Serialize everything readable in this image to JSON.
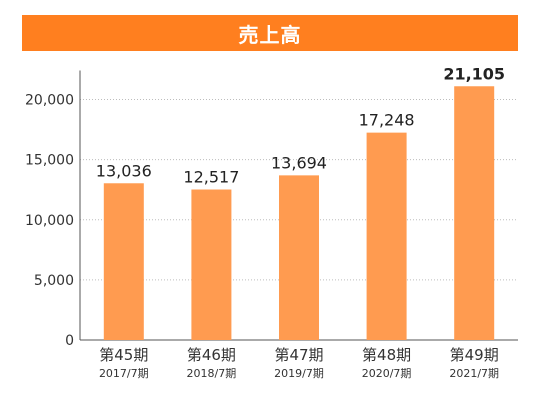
{
  "chart_data": {
    "type": "bar",
    "title": "売上高",
    "categories": [
      "第45期",
      "第46期",
      "第47期",
      "第48期",
      "第49期"
    ],
    "sub_categories": [
      "2017/7期",
      "2018/7期",
      "2019/7期",
      "2020/7期",
      "2021/7期"
    ],
    "values": [
      13036,
      12517,
      13694,
      17248,
      21105
    ],
    "value_labels": [
      "13,036",
      "12,517",
      "13,694",
      "17,248",
      "21,105"
    ],
    "highlight_index": 4,
    "yticks": [
      0,
      5000,
      10000,
      15000,
      20000
    ],
    "ytick_labels": [
      "0",
      "5,000",
      "10,000",
      "15,000",
      "20,000"
    ],
    "ylim": [
      0,
      22000
    ],
    "grid": true,
    "grid_style": "dotted",
    "bar_color": "#ff9b50",
    "title_bg_color": "#ff7f1f",
    "xlabel": "",
    "ylabel": ""
  }
}
